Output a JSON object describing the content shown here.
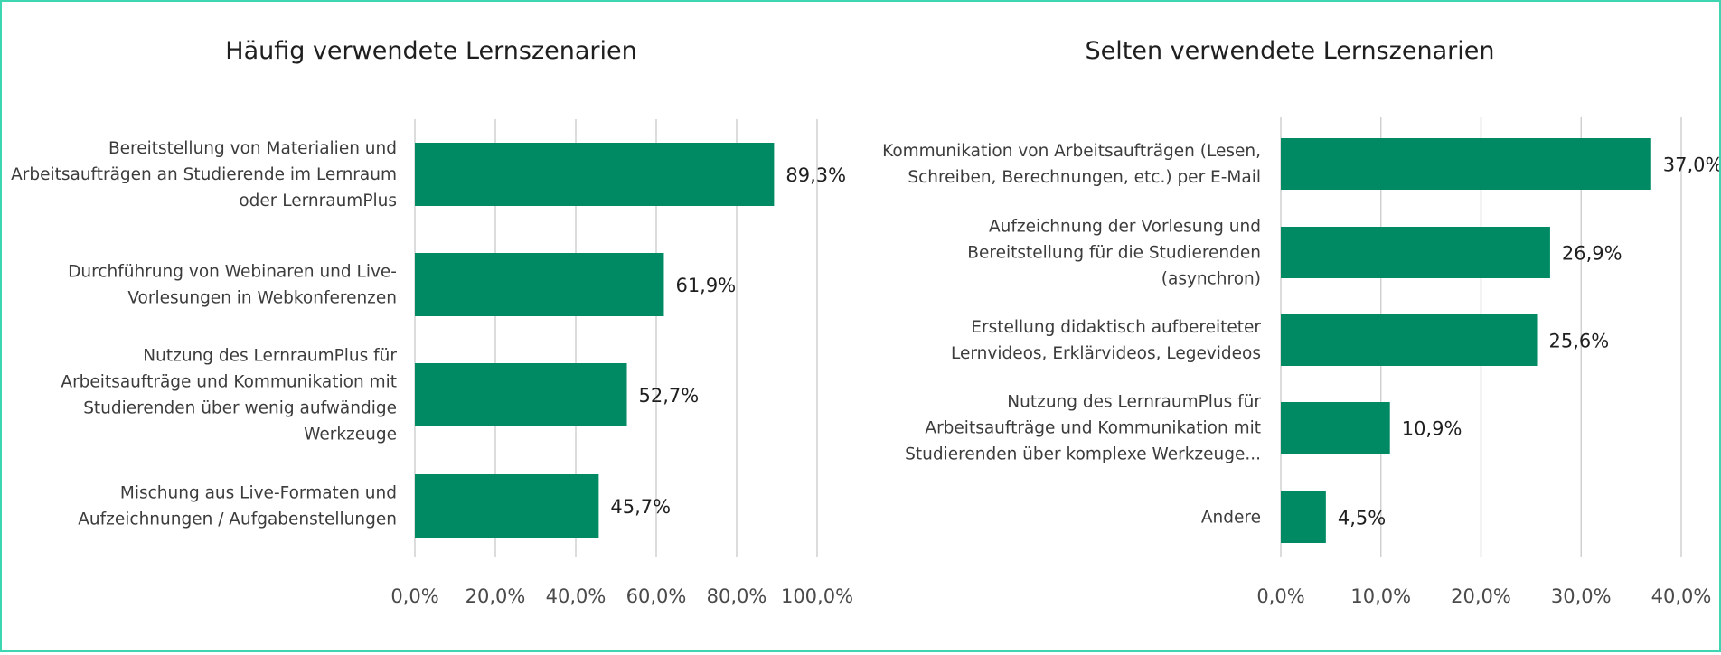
{
  "chart_data": [
    {
      "type": "bar",
      "orientation": "horizontal",
      "title": "Häufig verwendete Lernszenarien",
      "categories": [
        [
          "Bereitstellung von Materialien und",
          "Arbeitsaufträgen an Studierende im Lernraum",
          "oder LernraumPlus"
        ],
        [
          "Durchführung von Webinaren und Live-",
          "Vorlesungen in Webkonferenzen"
        ],
        [
          "Nutzung des LernraumPlus für",
          "Arbeitsaufträge und Kommunikation mit",
          "Studierenden über wenig aufwändige",
          "Werkzeuge"
        ],
        [
          "Mischung aus Live-Formaten und",
          "Aufzeichnungen / Aufgabenstellungen"
        ]
      ],
      "values": [
        89.3,
        61.9,
        52.7,
        45.7
      ],
      "value_labels": [
        "89,3%",
        "61,9%",
        "52,7%",
        "45,7%"
      ],
      "xlim": [
        0,
        100
      ],
      "ticks": [
        "0,0%",
        "20,0%",
        "40,0%",
        "60,0%",
        "80,0%",
        "100,0%"
      ],
      "grid": true,
      "bar_color": "#008a64"
    },
    {
      "type": "bar",
      "orientation": "horizontal",
      "title": "Selten verwendete Lernszenarien",
      "categories": [
        [
          "Kommunikation von Arbeitsaufträgen (Lesen,",
          "Schreiben, Berechnungen, etc.) per E-Mail"
        ],
        [
          "Aufzeichnung der Vorlesung und",
          "Bereitstellung für die Studierenden",
          "(asynchron)"
        ],
        [
          "Erstellung didaktisch aufbereiteter",
          "Lernvideos, Erklärvideos, Legevideos"
        ],
        [
          "Nutzung des LernraumPlus für",
          "Arbeitsaufträge und Kommunikation mit",
          "Studierenden über komplexe Werkzeuge..."
        ],
        [
          "Andere"
        ]
      ],
      "values": [
        37.0,
        26.9,
        25.6,
        10.9,
        4.5
      ],
      "value_labels": [
        "37,0%",
        "26,9%",
        "25,6%",
        "10,9%",
        "4,5%"
      ],
      "xlim": [
        0,
        40
      ],
      "ticks": [
        "0,0%",
        "10,0%",
        "20,0%",
        "30,0%",
        "40,0%"
      ],
      "grid": true,
      "bar_color": "#008a64"
    }
  ]
}
